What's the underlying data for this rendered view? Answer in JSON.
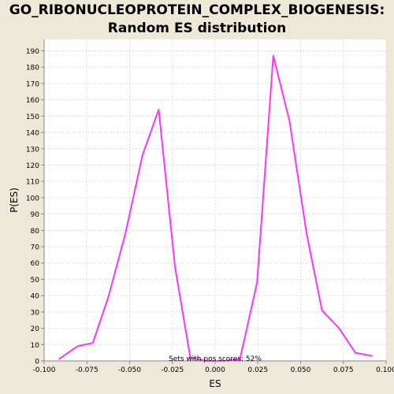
{
  "chart_data": {
    "type": "line",
    "title_lines": [
      "GO_RIBONUCLEOPROTEIN_COMPLEX_BIOGENESIS:",
      "Random ES distribution"
    ],
    "xlabel": "ES",
    "ylabel": "P(ES)",
    "xlim": [
      -0.1,
      0.1
    ],
    "ylim": [
      0,
      197
    ],
    "x_ticks": [
      -0.1,
      -0.075,
      -0.05,
      -0.025,
      0.0,
      0.025,
      0.05,
      0.075,
      0.1
    ],
    "x_tick_labels": [
      "-0.100",
      "-0.075",
      "-0.050",
      "-0.025",
      "0.000",
      "0.025",
      "0.050",
      "0.075",
      "0.100"
    ],
    "y_ticks": [
      0,
      10,
      20,
      30,
      40,
      50,
      60,
      70,
      80,
      90,
      100,
      110,
      120,
      130,
      140,
      150,
      160,
      170,
      180,
      190
    ],
    "y_tick_labels": [
      "0",
      "10",
      "20",
      "30",
      "40",
      "50",
      "60",
      "70",
      "80",
      "90",
      "100",
      "110",
      "120",
      "130",
      "140",
      "150",
      "160",
      "170",
      "180",
      "190"
    ],
    "grid": true,
    "annotation": "Sets with pos scores: 52%",
    "series": [
      {
        "color": "#FF33FF",
        "x": [
          -0.0915,
          -0.0805,
          -0.0715,
          -0.0625,
          -0.0525,
          -0.0425,
          -0.033,
          -0.0235,
          -0.0145,
          -0.005,
          0.005,
          0.0145,
          0.0245,
          0.034,
          0.0435,
          0.0535,
          0.0625,
          0.0725,
          0.082,
          0.092
        ],
        "y": [
          1,
          9,
          11,
          39,
          78,
          126,
          154,
          58,
          2,
          0,
          0,
          1,
          48,
          187,
          147,
          78,
          31,
          20,
          5,
          3
        ]
      }
    ]
  }
}
